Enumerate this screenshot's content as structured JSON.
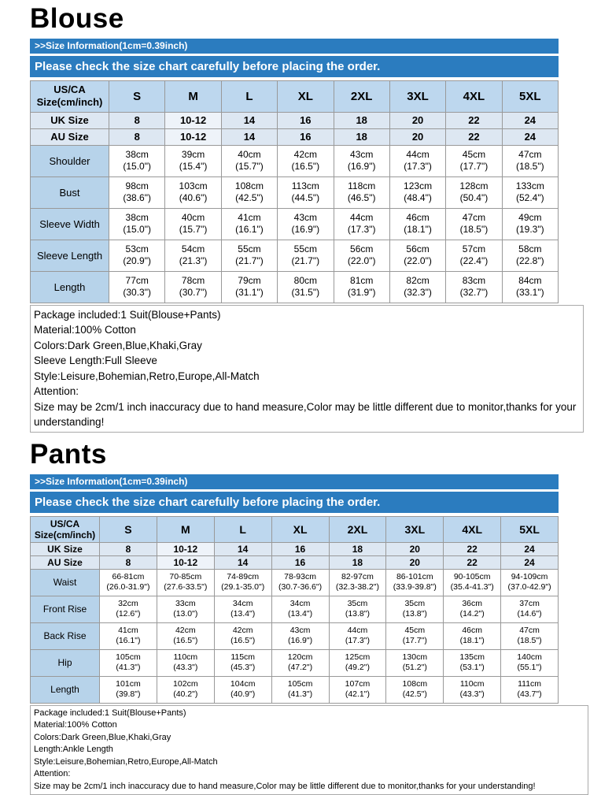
{
  "colors": {
    "bar_blue": "#2b7cbf",
    "header_bg": "#bdd7ee",
    "label_bg": "#b7d3ea",
    "intl_bg": "#dde7f2",
    "intl_hl": "#eef3f9",
    "table_border": "#999999"
  },
  "blouse": {
    "title": "Blouse",
    "size_info_bar": ">>Size Information(1cm=0.39inch)",
    "check_bar": "Please check the size chart carefully before placing the order.",
    "table": {
      "corner_label": "US/CA\nSize(cm/inch)",
      "sizes": [
        "S",
        "M",
        "L",
        "XL",
        "2XL",
        "3XL",
        "4XL",
        "5XL"
      ],
      "uk_row": {
        "label": "UK Size",
        "values": [
          "8",
          "10-12",
          "14",
          "16",
          "18",
          "20",
          "22",
          "24"
        ]
      },
      "au_row": {
        "label": "AU  Size",
        "values": [
          "8",
          "10-12",
          "14",
          "16",
          "18",
          "20",
          "22",
          "24"
        ]
      },
      "rows": [
        {
          "label": "Shoulder",
          "values": [
            "38cm\n(15.0\")",
            "39cm\n(15.4\")",
            "40cm\n(15.7\")",
            "42cm\n(16.5\")",
            "43cm\n(16.9\")",
            "44cm\n(17.3\")",
            "45cm\n(17.7\")",
            "47cm\n(18.5\")"
          ]
        },
        {
          "label": "Bust",
          "values": [
            "98cm\n(38.6\")",
            "103cm\n(40.6\")",
            "108cm\n(42.5\")",
            "113cm\n(44.5\")",
            "118cm\n(46.5\")",
            "123cm\n(48.4\")",
            "128cm\n(50.4\")",
            "133cm\n(52.4\")"
          ]
        },
        {
          "label": "Sleeve Width",
          "values": [
            "38cm\n(15.0\")",
            "40cm\n(15.7\")",
            "41cm\n(16.1\")",
            "43cm\n(16.9\")",
            "44cm\n(17.3\")",
            "46cm\n(18.1\")",
            "47cm\n(18.5\")",
            "49cm\n(19.3\")"
          ]
        },
        {
          "label": "Sleeve Length",
          "values": [
            "53cm\n(20.9\")",
            "54cm\n(21.3\")",
            "55cm\n(21.7\")",
            "55cm\n(21.7\")",
            "56cm\n(22.0\")",
            "56cm\n(22.0\")",
            "57cm\n(22.4\")",
            "58cm\n(22.8\")"
          ]
        },
        {
          "label": "Length",
          "values": [
            "77cm\n(30.3\")",
            "78cm\n(30.7\")",
            "79cm\n(31.1\")",
            "80cm\n(31.5\")",
            "81cm\n(31.9\")",
            "82cm\n(32.3\")",
            "83cm\n(32.7\")",
            "84cm\n(33.1\")"
          ]
        }
      ]
    },
    "notes": [
      "Package included:1 Suit(Blouse+Pants)",
      "Material:100% Cotton",
      "Colors:Dark Green,Blue,Khaki,Gray",
      "Sleeve Length:Full Sleeve",
      "Style:Leisure,Bohemian,Retro,Europe,All-Match",
      "Attention:",
      "Size may be 2cm/1 inch inaccuracy due to hand measure,Color may be little different due to monitor,thanks for your understanding!"
    ]
  },
  "pants": {
    "title": "Pants",
    "size_info_bar": ">>Size Information(1cm=0.39inch)",
    "check_bar": "Please check the size chart carefully before placing the order.",
    "table": {
      "corner_label": "US/CA\nSize(cm/inch)",
      "sizes": [
        "S",
        "M",
        "L",
        "XL",
        "2XL",
        "3XL",
        "4XL",
        "5XL"
      ],
      "uk_row": {
        "label": "UK Size",
        "values": [
          "8",
          "10-12",
          "14",
          "16",
          "18",
          "20",
          "22",
          "24"
        ]
      },
      "au_row": {
        "label": "AU Size",
        "values": [
          "8",
          "10-12",
          "14",
          "16",
          "18",
          "20",
          "22",
          "24"
        ]
      },
      "rows": [
        {
          "label": "Waist",
          "values": [
            "66-81cm\n(26.0-31.9\")",
            "70-85cm\n(27.6-33.5\")",
            "74-89cm\n(29.1-35.0\")",
            "78-93cm\n(30.7-36.6\")",
            "82-97cm\n(32.3-38.2\")",
            "86-101cm\n(33.9-39.8\")",
            "90-105cm\n(35.4-41.3\")",
            "94-109cm\n(37.0-42.9\")"
          ]
        },
        {
          "label": "Front Rise",
          "values": [
            "32cm\n(12.6\")",
            "33cm\n(13.0\")",
            "34cm\n(13.4\")",
            "34cm\n(13.4\")",
            "35cm\n(13.8\")",
            "35cm\n(13.8\")",
            "36cm\n(14.2\")",
            "37cm\n(14.6\")"
          ]
        },
        {
          "label": "Back Rise",
          "values": [
            "41cm\n(16.1\")",
            "42cm\n(16.5\")",
            "42cm\n(16.5\")",
            "43cm\n(16.9\")",
            "44cm\n(17.3\")",
            "45cm\n(17.7\")",
            "46cm\n(18.1\")",
            "47cm\n(18.5\")"
          ]
        },
        {
          "label": "Hip",
          "values": [
            "105cm\n(41.3\")",
            "110cm\n(43.3\")",
            "115cm\n(45.3\")",
            "120cm\n(47.2\")",
            "125cm\n(49.2\")",
            "130cm\n(51.2\")",
            "135cm\n(53.1\")",
            "140cm\n(55.1\")"
          ]
        },
        {
          "label": "Length",
          "values": [
            "101cm\n(39.8\")",
            "102cm\n(40.2\")",
            "104cm\n(40.9\")",
            "105cm\n(41.3\")",
            "107cm\n(42.1\")",
            "108cm\n(42.5\")",
            "110cm\n(43.3\")",
            "111cm\n(43.7\")"
          ]
        }
      ]
    },
    "notes": [
      "Package included:1 Suit(Blouse+Pants)",
      "Material:100% Cotton",
      "Colors:Dark Green,Blue,Khaki,Gray",
      "Length:Ankle Length",
      "Style:Leisure,Bohemian,Retro,Europe,All-Match",
      "Attention:",
      "Size may be 2cm/1 inch inaccuracy due to hand measure,Color may be little different due to monitor,thanks for your understanding!"
    ]
  }
}
